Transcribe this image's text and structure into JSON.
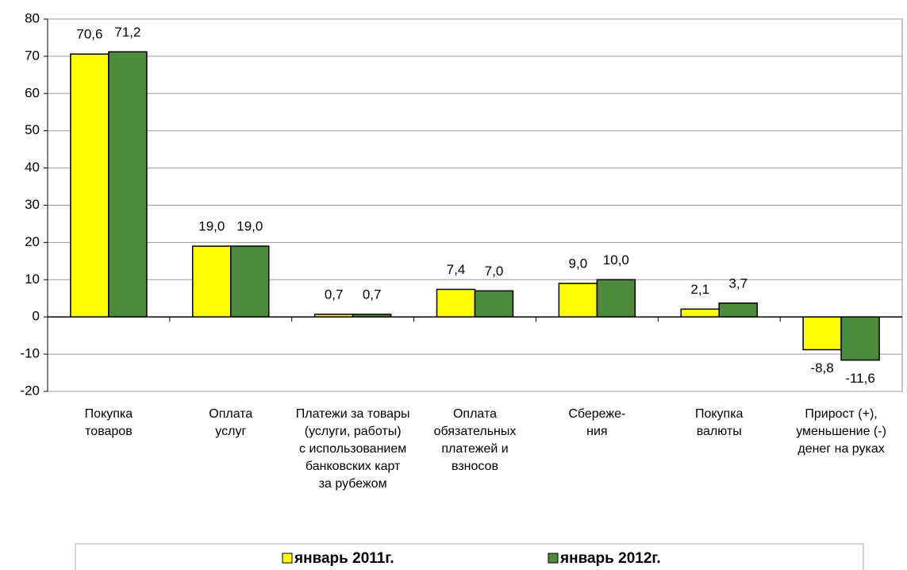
{
  "chart_data": {
    "type": "bar",
    "categories": [
      "Покупка\nтоваров",
      "Оплата\nуслуг",
      "Платежи за товары\n(услуги, работы)\nс использованием\nбанковских карт\nза рубежом",
      "Оплата\nобязательных\nплатежей и\nвзносов",
      "Сбереже-\nния",
      "Покупка\nвалюты",
      "Прирост (+),\nуменьшение (-)\nденег на руках"
    ],
    "series": [
      {
        "name": "январь 2011г.",
        "color": "#ffff00",
        "values": [
          70.6,
          19.0,
          0.7,
          7.4,
          9.0,
          2.1,
          -8.8
        ],
        "value_labels": [
          "70,6",
          "19,0",
          "0,7",
          "7,4",
          "9,0",
          "2,1",
          "-8,8"
        ]
      },
      {
        "name": "январь 2012г.",
        "color": "#4e8a3c",
        "values": [
          71.2,
          19.0,
          0.7,
          7.0,
          10.0,
          3.7,
          -11.6
        ],
        "value_labels": [
          "71,2",
          "19,0",
          "0,7",
          "7,0",
          "10,0",
          "3,7",
          "-11,6"
        ]
      }
    ],
    "ylim": [
      -20,
      80
    ],
    "yticks": [
      -20,
      -10,
      0,
      10,
      20,
      30,
      40,
      50,
      60,
      70,
      80
    ],
    "grid": true,
    "legend": "bottom"
  }
}
